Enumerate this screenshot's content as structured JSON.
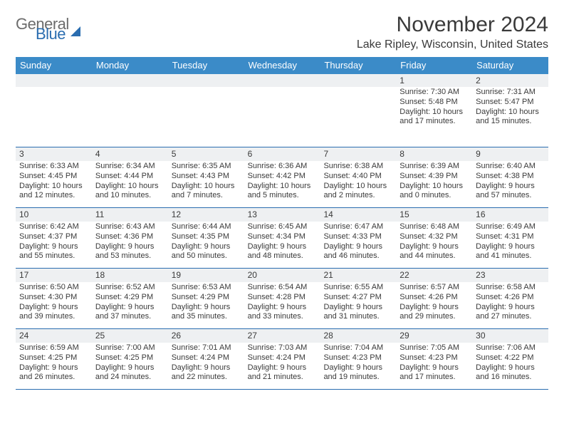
{
  "brand": {
    "word1": "General",
    "word2": "Blue"
  },
  "title": "November 2024",
  "location": "Lake Ripley, Wisconsin, United States",
  "colors": {
    "header_bg": "#3b8bc8",
    "header_text": "#ffffff",
    "line": "#2a6db0",
    "daynum_bg": "#eef0f2",
    "body_text": "#3a3a3a",
    "logo_gray": "#6c6c6c",
    "logo_blue": "#2a6db0",
    "page_bg": "#ffffff"
  },
  "day_headers": [
    "Sunday",
    "Monday",
    "Tuesday",
    "Wednesday",
    "Thursday",
    "Friday",
    "Saturday"
  ],
  "weeks": [
    [
      null,
      null,
      null,
      null,
      null,
      {
        "n": "1",
        "sunrise": "Sunrise: 7:30 AM",
        "sunset": "Sunset: 5:48 PM",
        "daylight": "Daylight: 10 hours and 17 minutes."
      },
      {
        "n": "2",
        "sunrise": "Sunrise: 7:31 AM",
        "sunset": "Sunset: 5:47 PM",
        "daylight": "Daylight: 10 hours and 15 minutes."
      }
    ],
    [
      {
        "n": "3",
        "sunrise": "Sunrise: 6:33 AM",
        "sunset": "Sunset: 4:45 PM",
        "daylight": "Daylight: 10 hours and 12 minutes."
      },
      {
        "n": "4",
        "sunrise": "Sunrise: 6:34 AM",
        "sunset": "Sunset: 4:44 PM",
        "daylight": "Daylight: 10 hours and 10 minutes."
      },
      {
        "n": "5",
        "sunrise": "Sunrise: 6:35 AM",
        "sunset": "Sunset: 4:43 PM",
        "daylight": "Daylight: 10 hours and 7 minutes."
      },
      {
        "n": "6",
        "sunrise": "Sunrise: 6:36 AM",
        "sunset": "Sunset: 4:42 PM",
        "daylight": "Daylight: 10 hours and 5 minutes."
      },
      {
        "n": "7",
        "sunrise": "Sunrise: 6:38 AM",
        "sunset": "Sunset: 4:40 PM",
        "daylight": "Daylight: 10 hours and 2 minutes."
      },
      {
        "n": "8",
        "sunrise": "Sunrise: 6:39 AM",
        "sunset": "Sunset: 4:39 PM",
        "daylight": "Daylight: 10 hours and 0 minutes."
      },
      {
        "n": "9",
        "sunrise": "Sunrise: 6:40 AM",
        "sunset": "Sunset: 4:38 PM",
        "daylight": "Daylight: 9 hours and 57 minutes."
      }
    ],
    [
      {
        "n": "10",
        "sunrise": "Sunrise: 6:42 AM",
        "sunset": "Sunset: 4:37 PM",
        "daylight": "Daylight: 9 hours and 55 minutes."
      },
      {
        "n": "11",
        "sunrise": "Sunrise: 6:43 AM",
        "sunset": "Sunset: 4:36 PM",
        "daylight": "Daylight: 9 hours and 53 minutes."
      },
      {
        "n": "12",
        "sunrise": "Sunrise: 6:44 AM",
        "sunset": "Sunset: 4:35 PM",
        "daylight": "Daylight: 9 hours and 50 minutes."
      },
      {
        "n": "13",
        "sunrise": "Sunrise: 6:45 AM",
        "sunset": "Sunset: 4:34 PM",
        "daylight": "Daylight: 9 hours and 48 minutes."
      },
      {
        "n": "14",
        "sunrise": "Sunrise: 6:47 AM",
        "sunset": "Sunset: 4:33 PM",
        "daylight": "Daylight: 9 hours and 46 minutes."
      },
      {
        "n": "15",
        "sunrise": "Sunrise: 6:48 AM",
        "sunset": "Sunset: 4:32 PM",
        "daylight": "Daylight: 9 hours and 44 minutes."
      },
      {
        "n": "16",
        "sunrise": "Sunrise: 6:49 AM",
        "sunset": "Sunset: 4:31 PM",
        "daylight": "Daylight: 9 hours and 41 minutes."
      }
    ],
    [
      {
        "n": "17",
        "sunrise": "Sunrise: 6:50 AM",
        "sunset": "Sunset: 4:30 PM",
        "daylight": "Daylight: 9 hours and 39 minutes."
      },
      {
        "n": "18",
        "sunrise": "Sunrise: 6:52 AM",
        "sunset": "Sunset: 4:29 PM",
        "daylight": "Daylight: 9 hours and 37 minutes."
      },
      {
        "n": "19",
        "sunrise": "Sunrise: 6:53 AM",
        "sunset": "Sunset: 4:29 PM",
        "daylight": "Daylight: 9 hours and 35 minutes."
      },
      {
        "n": "20",
        "sunrise": "Sunrise: 6:54 AM",
        "sunset": "Sunset: 4:28 PM",
        "daylight": "Daylight: 9 hours and 33 minutes."
      },
      {
        "n": "21",
        "sunrise": "Sunrise: 6:55 AM",
        "sunset": "Sunset: 4:27 PM",
        "daylight": "Daylight: 9 hours and 31 minutes."
      },
      {
        "n": "22",
        "sunrise": "Sunrise: 6:57 AM",
        "sunset": "Sunset: 4:26 PM",
        "daylight": "Daylight: 9 hours and 29 minutes."
      },
      {
        "n": "23",
        "sunrise": "Sunrise: 6:58 AM",
        "sunset": "Sunset: 4:26 PM",
        "daylight": "Daylight: 9 hours and 27 minutes."
      }
    ],
    [
      {
        "n": "24",
        "sunrise": "Sunrise: 6:59 AM",
        "sunset": "Sunset: 4:25 PM",
        "daylight": "Daylight: 9 hours and 26 minutes."
      },
      {
        "n": "25",
        "sunrise": "Sunrise: 7:00 AM",
        "sunset": "Sunset: 4:25 PM",
        "daylight": "Daylight: 9 hours and 24 minutes."
      },
      {
        "n": "26",
        "sunrise": "Sunrise: 7:01 AM",
        "sunset": "Sunset: 4:24 PM",
        "daylight": "Daylight: 9 hours and 22 minutes."
      },
      {
        "n": "27",
        "sunrise": "Sunrise: 7:03 AM",
        "sunset": "Sunset: 4:24 PM",
        "daylight": "Daylight: 9 hours and 21 minutes."
      },
      {
        "n": "28",
        "sunrise": "Sunrise: 7:04 AM",
        "sunset": "Sunset: 4:23 PM",
        "daylight": "Daylight: 9 hours and 19 minutes."
      },
      {
        "n": "29",
        "sunrise": "Sunrise: 7:05 AM",
        "sunset": "Sunset: 4:23 PM",
        "daylight": "Daylight: 9 hours and 17 minutes."
      },
      {
        "n": "30",
        "sunrise": "Sunrise: 7:06 AM",
        "sunset": "Sunset: 4:22 PM",
        "daylight": "Daylight: 9 hours and 16 minutes."
      }
    ]
  ]
}
